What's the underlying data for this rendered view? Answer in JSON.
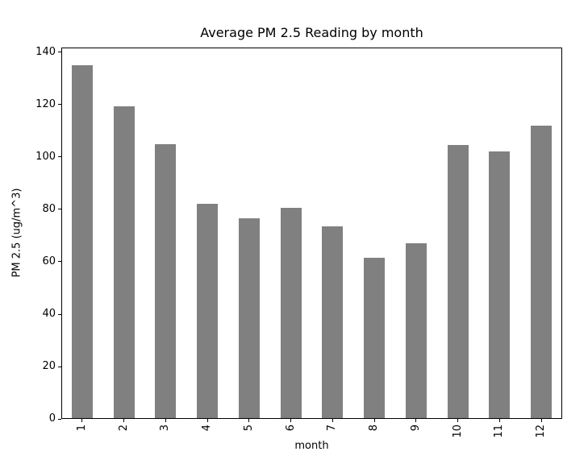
{
  "chart_data": {
    "type": "bar",
    "title": "Average PM 2.5 Reading by month",
    "xlabel": "month",
    "ylabel": "PM 2.5 (ug/m^3)",
    "categories": [
      "1",
      "2",
      "3",
      "4",
      "5",
      "6",
      "7",
      "8",
      "9",
      "10",
      "11",
      "12"
    ],
    "values": [
      135,
      119.5,
      105,
      82,
      76.5,
      80.5,
      73.5,
      61.5,
      67,
      104.5,
      102,
      112
    ],
    "ylim": [
      0,
      141.8
    ],
    "yticks": [
      0,
      20,
      40,
      60,
      80,
      100,
      120,
      140
    ],
    "bar_color": "#808080",
    "bar_width_fraction": 0.5,
    "grid": false,
    "legend_position": "none"
  }
}
